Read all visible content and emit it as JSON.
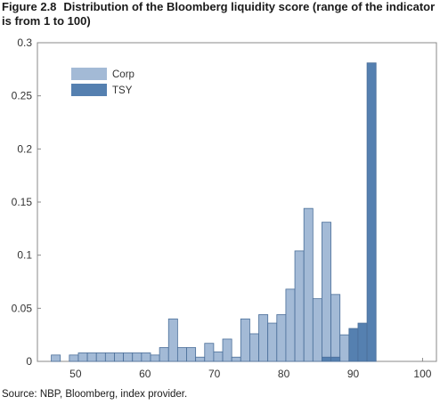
{
  "figure": {
    "label": "Figure 2.8",
    "title": "Distribution of the Bloomberg liquidity score (range of the indicator is from 1 to 100)",
    "source": "Source: NBP, Bloomberg, index provider."
  },
  "chart_data": {
    "type": "bar",
    "title": "Distribution of the Bloomberg liquidity score (range of the indicator is from 1 to 100)",
    "xlabel": "",
    "ylabel": "",
    "xlim": [
      44.5,
      102
    ],
    "ylim": [
      0,
      0.3
    ],
    "bin_width": 1.3,
    "x_ticks": [
      50,
      60,
      70,
      80,
      90,
      100
    ],
    "y_ticks": [
      0,
      0.05,
      0.1,
      0.15,
      0.2,
      0.25,
      0.3
    ],
    "y_tick_labels": [
      "0",
      "0.05",
      "0.1",
      "0.15",
      "0.2",
      "0.25",
      "0.3"
    ],
    "grid": false,
    "legend_position": "top-left",
    "colors": {
      "Corp": "#a3bad6",
      "TSY": "#5580b0",
      "edge": "#4a6e99"
    },
    "series": [
      {
        "name": "Corp",
        "bins": [
          {
            "x": 46.5,
            "y": 0.006
          },
          {
            "x": 49.1,
            "y": 0.006
          },
          {
            "x": 50.4,
            "y": 0.008
          },
          {
            "x": 51.7,
            "y": 0.008
          },
          {
            "x": 53.0,
            "y": 0.008
          },
          {
            "x": 54.3,
            "y": 0.008
          },
          {
            "x": 55.6,
            "y": 0.008
          },
          {
            "x": 56.9,
            "y": 0.008
          },
          {
            "x": 58.2,
            "y": 0.008
          },
          {
            "x": 59.5,
            "y": 0.008
          },
          {
            "x": 60.8,
            "y": 0.006
          },
          {
            "x": 62.1,
            "y": 0.013
          },
          {
            "x": 63.4,
            "y": 0.04
          },
          {
            "x": 64.7,
            "y": 0.013
          },
          {
            "x": 66.0,
            "y": 0.013
          },
          {
            "x": 67.3,
            "y": 0.004
          },
          {
            "x": 68.6,
            "y": 0.017
          },
          {
            "x": 69.9,
            "y": 0.009
          },
          {
            "x": 71.2,
            "y": 0.021
          },
          {
            "x": 72.5,
            "y": 0.004
          },
          {
            "x": 73.8,
            "y": 0.04
          },
          {
            "x": 75.1,
            "y": 0.026
          },
          {
            "x": 76.4,
            "y": 0.044
          },
          {
            "x": 77.7,
            "y": 0.036
          },
          {
            "x": 79.0,
            "y": 0.044
          },
          {
            "x": 80.3,
            "y": 0.068
          },
          {
            "x": 81.6,
            "y": 0.104
          },
          {
            "x": 82.9,
            "y": 0.144
          },
          {
            "x": 84.2,
            "y": 0.059
          },
          {
            "x": 85.5,
            "y": 0.131
          },
          {
            "x": 86.8,
            "y": 0.063
          },
          {
            "x": 88.1,
            "y": 0.025
          }
        ]
      },
      {
        "name": "TSY",
        "bins": [
          {
            "x": 85.5,
            "y": 0.004
          },
          {
            "x": 86.8,
            "y": 0.004
          },
          {
            "x": 89.4,
            "y": 0.031
          },
          {
            "x": 90.7,
            "y": 0.036
          },
          {
            "x": 92.0,
            "y": 0.281
          }
        ]
      }
    ]
  }
}
